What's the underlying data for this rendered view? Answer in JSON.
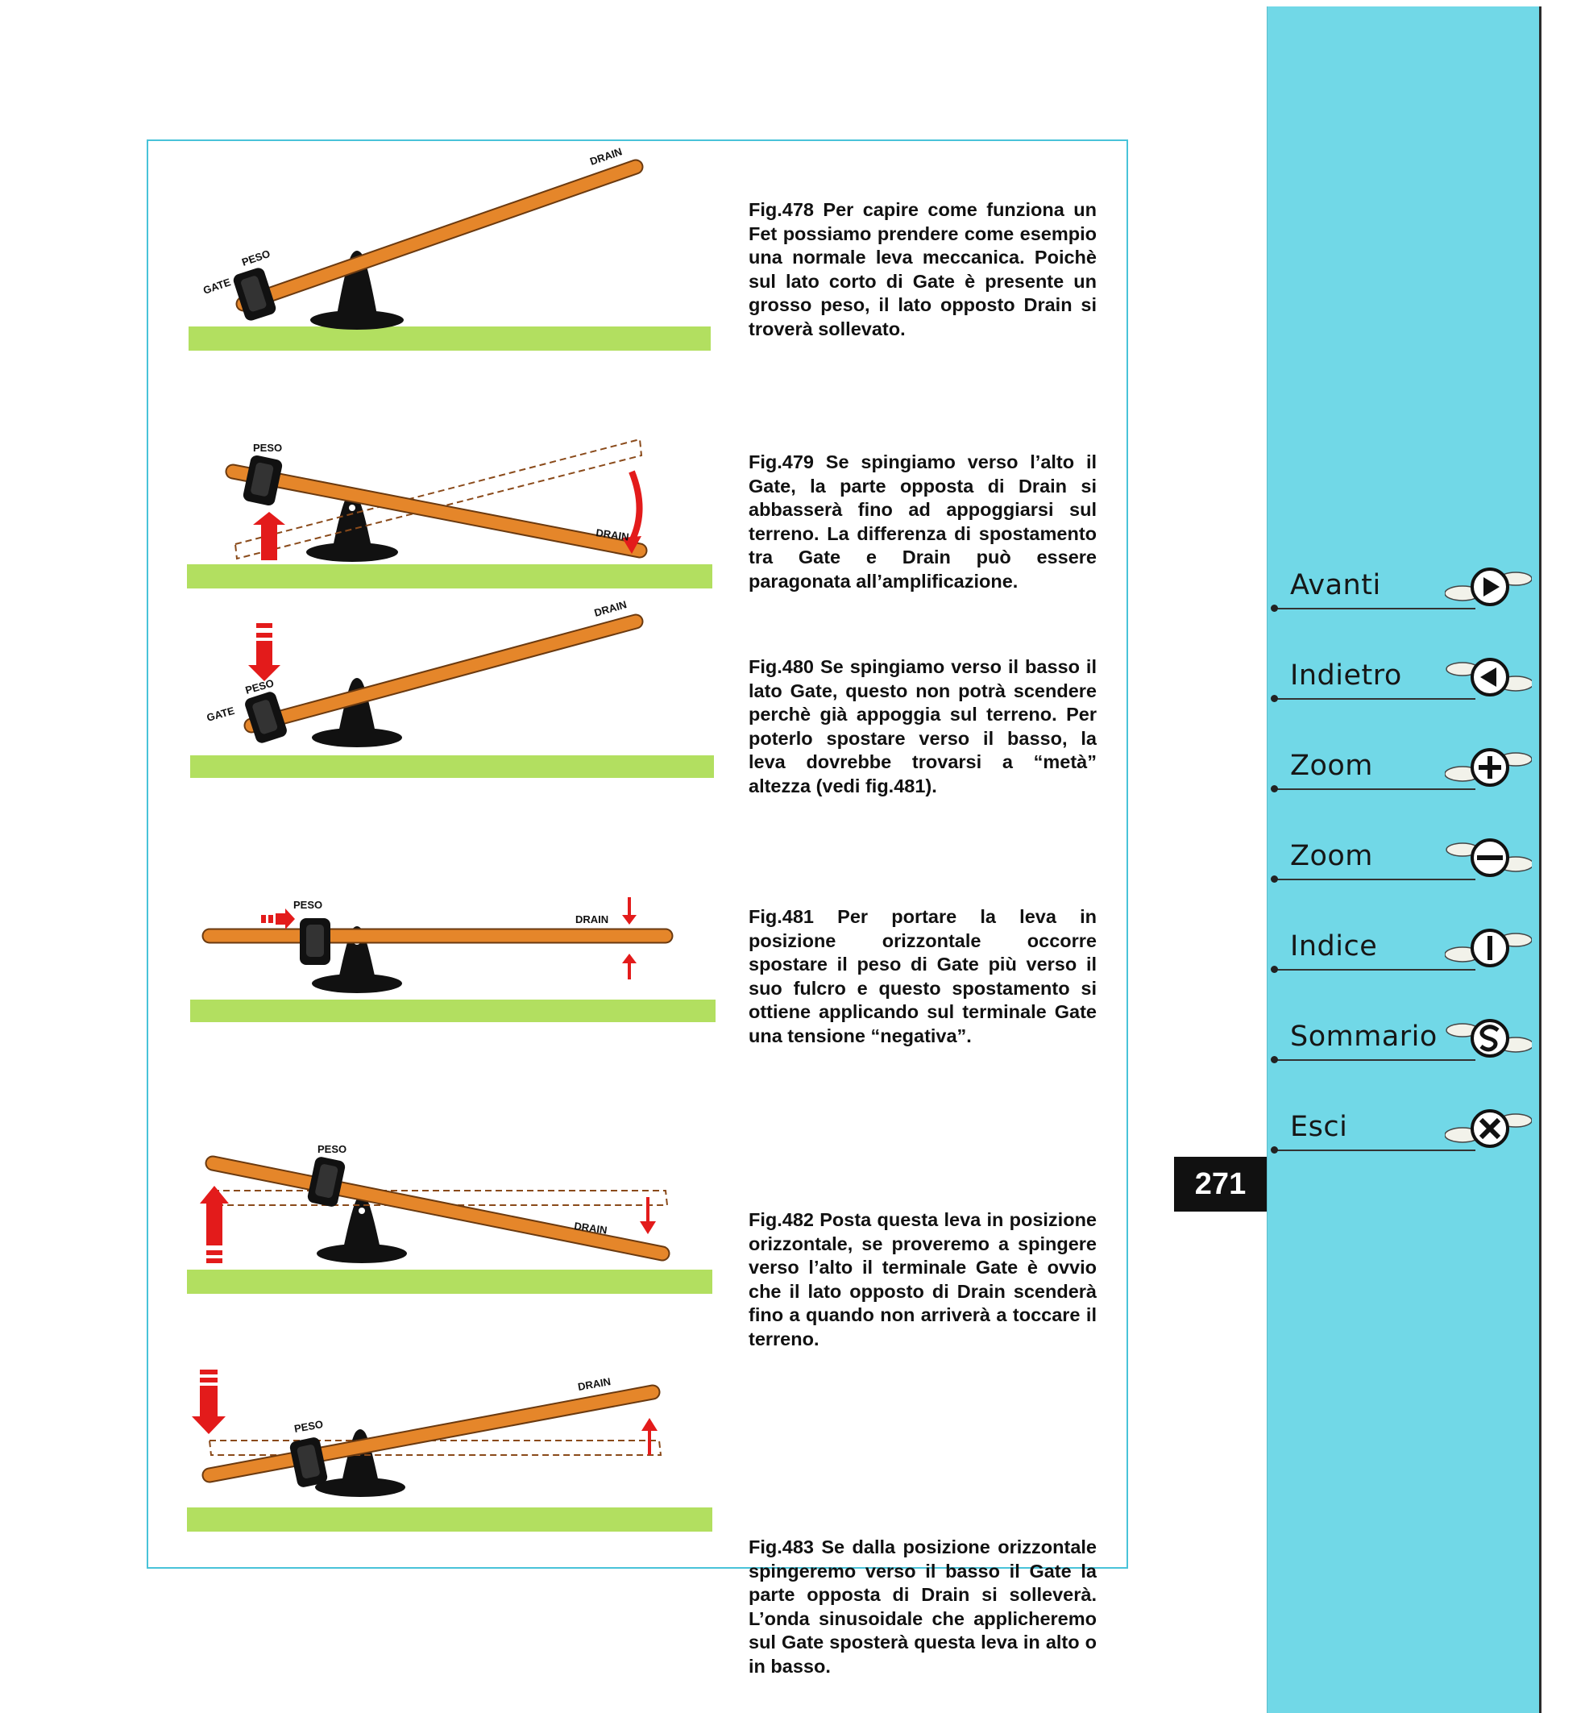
{
  "figures": [
    {
      "id": "fig478",
      "labels": {
        "drain": "DRAIN",
        "peso": "PESO",
        "gate": "GATE"
      },
      "caption": "Fig.478 Per capire come funziona un Fet possiamo prendere come esempio una normale leva meccanica. Poichè sul lato corto di Gate è presente un grosso peso, il lato opposto Drain si troverà sollevato."
    },
    {
      "id": "fig479",
      "labels": {
        "drain": "DRAIN",
        "peso": "PESO"
      },
      "caption": "Fig.479 Se spingiamo verso l’alto il Gate, la parte opposta di Drain si abbasserà fino ad appoggiarsi sul terreno. La differenza di spostamento tra Gate e Drain può essere paragonata all’amplificazione."
    },
    {
      "id": "fig480",
      "labels": {
        "drain": "DRAIN",
        "peso": "PESO",
        "gate": "GATE"
      },
      "caption": "Fig.480 Se spingiamo verso il basso il lato Gate, questo non potrà scendere perchè già appoggia sul terreno. Per poterlo spostare verso il basso, la leva dovrebbe trovarsi a “metà” altezza (vedi fig.481)."
    },
    {
      "id": "fig481",
      "labels": {
        "drain": "DRAIN",
        "peso": "PESO"
      },
      "caption": "Fig.481 Per portare la leva in posizione orizzontale occorre spostare il peso di Gate più verso il suo fulcro e questo spostamento si ottiene applicando sul terminale Gate una tensione “negativa”."
    },
    {
      "id": "fig482",
      "labels": {
        "drain": "DRAIN",
        "peso": "PESO"
      },
      "caption": "Fig.482 Posta questa leva in posizione orizzontale, se proveremo a spingere verso l’alto il terminale Gate è ovvio che il lato opposto di Drain scenderà fino a quando non arriverà a toccare il terreno."
    },
    {
      "id": "fig483",
      "labels": {
        "drain": "DRAIN",
        "peso": "PESO"
      },
      "caption": "Fig.483 Se dalla posizione orizzontale spingeremo verso il basso il Gate la parte opposta di Drain si solleverà. L’onda sinusoidale che applicheremo sul Gate sposterà questa leva in alto o in basso."
    }
  ],
  "nav": {
    "avanti": "Avanti",
    "indietro": "Indietro",
    "zoom_in": "Zoom",
    "zoom_out": "Zoom",
    "indice": "Indice",
    "sommario": "Sommario",
    "esci": "Esci"
  },
  "page_number": "271",
  "colors": {
    "sidebar": "#71d8e7",
    "border": "#49c3d9",
    "lever": "#e5862a",
    "arrow": "#e31b1b",
    "grass": "#a9dc5a"
  }
}
